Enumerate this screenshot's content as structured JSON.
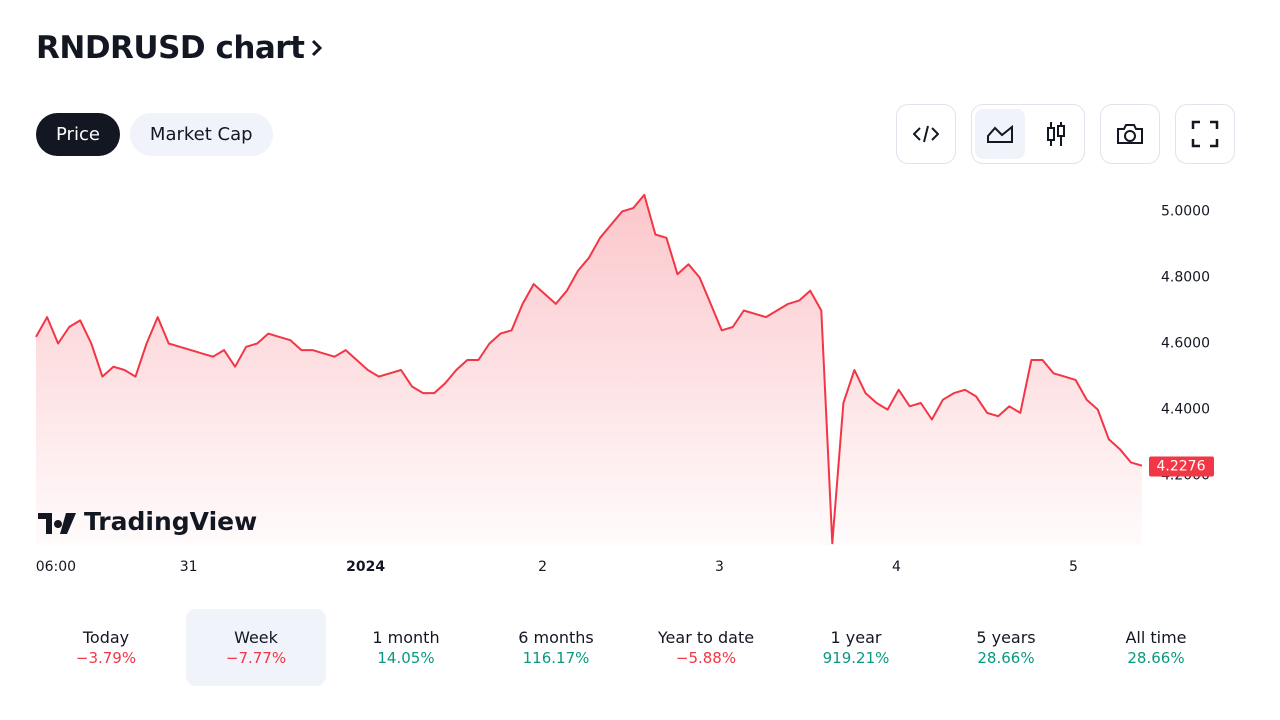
{
  "header": {
    "title": "RNDRUSD chart"
  },
  "tabs": [
    {
      "label": "Price",
      "active": true
    },
    {
      "label": "Market Cap",
      "active": false
    }
  ],
  "watermark": "TradingView",
  "chart_data": {
    "type": "line",
    "color": "#f23645",
    "values": [
      4.62,
      4.68,
      4.6,
      4.65,
      4.67,
      4.6,
      4.5,
      4.53,
      4.52,
      4.5,
      4.6,
      4.68,
      4.6,
      4.59,
      4.58,
      4.57,
      4.56,
      4.58,
      4.53,
      4.59,
      4.6,
      4.63,
      4.62,
      4.61,
      4.58,
      4.58,
      4.57,
      4.56,
      4.58,
      4.55,
      4.52,
      4.5,
      4.51,
      4.52,
      4.47,
      4.45,
      4.45,
      4.48,
      4.52,
      4.55,
      4.55,
      4.6,
      4.63,
      4.64,
      4.72,
      4.78,
      4.75,
      4.72,
      4.76,
      4.82,
      4.86,
      4.92,
      4.96,
      5.0,
      5.01,
      5.05,
      4.93,
      4.92,
      4.81,
      4.84,
      4.8,
      4.72,
      4.64,
      4.65,
      4.7,
      4.69,
      4.68,
      4.7,
      4.72,
      4.73,
      4.76,
      4.7,
      3.995,
      4.42,
      4.52,
      4.45,
      4.42,
      4.4,
      4.46,
      4.41,
      4.42,
      4.37,
      4.43,
      4.45,
      4.46,
      4.44,
      4.39,
      4.38,
      4.41,
      4.39,
      4.55,
      4.55,
      4.51,
      4.5,
      4.49,
      4.43,
      4.4,
      4.31,
      4.28,
      4.24,
      4.23
    ],
    "xlim": [
      0,
      100
    ],
    "xticks": [
      {
        "value": 1.8,
        "label": "06:00"
      },
      {
        "value": 13.8,
        "label": "31"
      },
      {
        "value": 29.8,
        "label": "2024"
      },
      {
        "value": 45.8,
        "label": "2"
      },
      {
        "value": 61.8,
        "label": "3"
      },
      {
        "value": 77.8,
        "label": "4"
      },
      {
        "value": 93.8,
        "label": "5"
      }
    ],
    "ylim": [
      3.99,
      5.08
    ],
    "yticks": [
      {
        "value": 4.2,
        "label": "4.2000"
      },
      {
        "value": 4.4,
        "label": "4.4000"
      },
      {
        "value": 4.6,
        "label": "4.6000"
      },
      {
        "value": 4.8,
        "label": "4.8000"
      },
      {
        "value": 5.0,
        "label": "5.0000"
      }
    ],
    "last_price": 4.2276
  },
  "periods": [
    {
      "label": "Today",
      "change": "−3.79%",
      "color": "#f23645",
      "active": false
    },
    {
      "label": "Week",
      "change": "−7.77%",
      "color": "#f23645",
      "active": true
    },
    {
      "label": "1 month",
      "change": "14.05%",
      "color": "#089981",
      "active": false
    },
    {
      "label": "6 months",
      "change": "116.17%",
      "color": "#089981",
      "active": false
    },
    {
      "label": "Year to date",
      "change": "−5.88%",
      "color": "#f23645",
      "active": false
    },
    {
      "label": "1 year",
      "change": "919.21%",
      "color": "#089981",
      "active": false
    },
    {
      "label": "5 years",
      "change": "28.66%",
      "color": "#089981",
      "active": false
    },
    {
      "label": "All time",
      "change": "28.66%",
      "color": "#089981",
      "active": false
    }
  ]
}
